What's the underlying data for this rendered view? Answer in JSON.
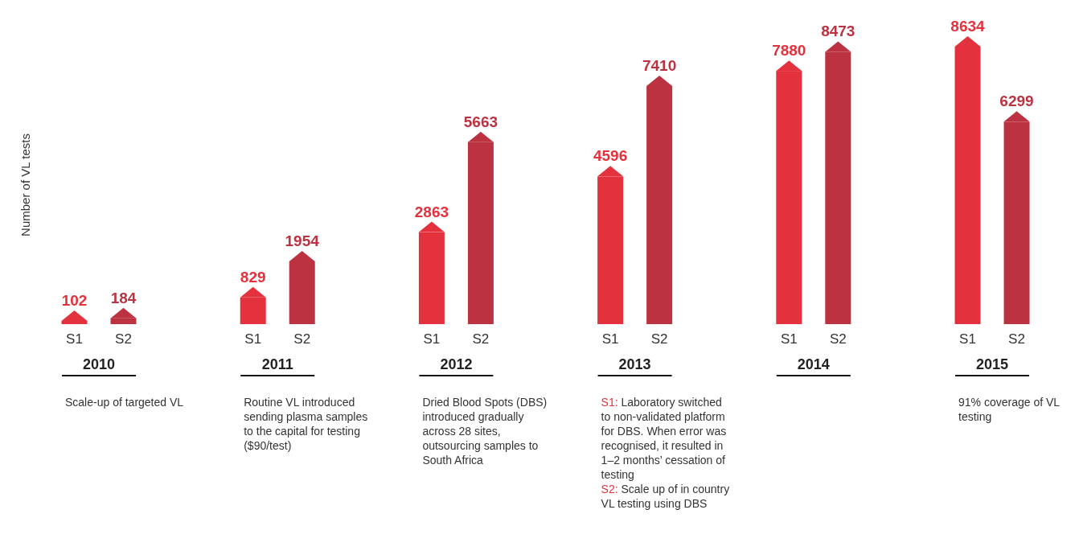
{
  "chart_data": {
    "type": "bar",
    "ylabel": "Number of VL tests",
    "categories": [
      "2010",
      "2011",
      "2012",
      "2013",
      "2014",
      "2015"
    ],
    "series": [
      {
        "name": "S1",
        "color": "#e3323d",
        "values": [
          102,
          829,
          2863,
          4596,
          7880,
          8634
        ]
      },
      {
        "name": "S2",
        "color": "#bd3240",
        "values": [
          184,
          1954,
          5663,
          7410,
          8473,
          6299
        ]
      }
    ],
    "data_labels": true,
    "annotations": [
      "Scale-up of targeted VL",
      "Routine VL introduced sending plasma samples to the capital for testing ($90/test)",
      "Dried Blood Spots (DBS) introduced gradually across 28 sites, outsourcing samples to South Africa",
      "S1: Laboratory switched to non-validated platform for DBS. When error was recognised, it resulted in 1–2 months’ cessation of testing",
      "S2: Scale up of in country VL testing using DBS",
      "91% coverage of VL testing"
    ]
  }
}
